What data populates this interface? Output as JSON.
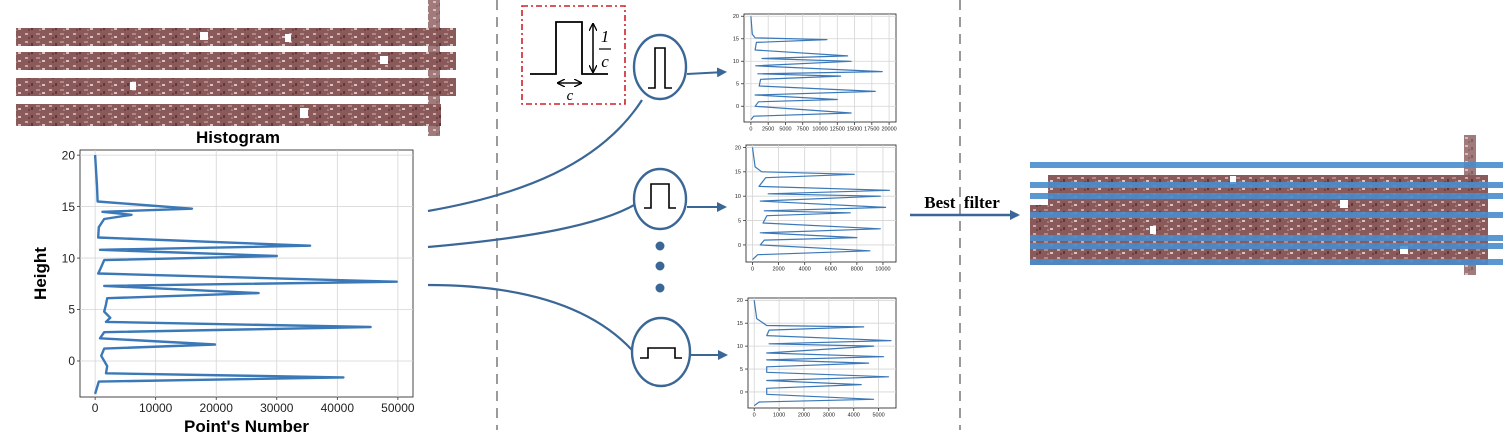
{
  "histogram_title": "Histogram",
  "best_filter_label": "Best  filter",
  "kernel_box": {
    "height_numerator": "1",
    "height_denominator": "c",
    "width_label": "c"
  },
  "colors": {
    "accent": "#3a78b8",
    "facade": "#7a4e4e",
    "guide": "#9a9a9a",
    "frame_red": "#d0202a"
  },
  "chart_data": [
    {
      "type": "line",
      "title": "Histogram",
      "xlabel": "Point's Number",
      "ylabel": "Height",
      "xlim": [
        -2500,
        52500
      ],
      "ylim": [
        -3.5,
        20.5
      ],
      "xticks": [
        0,
        10000,
        20000,
        30000,
        40000,
        50000
      ],
      "yticks": [
        0,
        5,
        10,
        15,
        20
      ],
      "grid": true,
      "series": [
        {
          "points": [
            [
              0,
              20
            ],
            [
              300,
              17
            ],
            [
              400,
              15.5
            ],
            [
              16000,
              14.8
            ],
            [
              1200,
              14.5
            ],
            [
              6000,
              14.2
            ],
            [
              1500,
              13.8
            ],
            [
              600,
              13
            ],
            [
              500,
              12
            ],
            [
              35500,
              11.2
            ],
            [
              800,
              10.8
            ],
            [
              30000,
              10.2
            ],
            [
              1500,
              9.8
            ],
            [
              900,
              9
            ],
            [
              500,
              8.5
            ],
            [
              49800,
              7.7
            ],
            [
              1500,
              7.3
            ],
            [
              27000,
              6.6
            ],
            [
              2000,
              6.1
            ],
            [
              1800,
              5.5
            ],
            [
              1500,
              4.8
            ],
            [
              2500,
              4.2
            ],
            [
              1800,
              3.8
            ],
            [
              45500,
              3.3
            ],
            [
              1500,
              2.8
            ],
            [
              800,
              2.2
            ],
            [
              19800,
              1.6
            ],
            [
              1500,
              1.2
            ],
            [
              1000,
              0.5
            ],
            [
              2000,
              -0.5
            ],
            [
              1800,
              -1.2
            ],
            [
              41000,
              -1.6
            ],
            [
              600,
              -2
            ],
            [
              0,
              -3.2
            ]
          ]
        }
      ]
    },
    {
      "type": "line",
      "xlim": [
        -1000,
        21000
      ],
      "ylim": [
        -3.5,
        20.5
      ],
      "xticks": [
        0,
        2500,
        5000,
        7500,
        10000,
        12500,
        15000,
        17500,
        20000
      ],
      "yticks": [
        0,
        5,
        10,
        15,
        20
      ],
      "grid": true,
      "series": [
        {
          "points": [
            [
              0,
              20
            ],
            [
              200,
              16
            ],
            [
              600,
              15.2
            ],
            [
              11000,
              14.8
            ],
            [
              800,
              14.2
            ],
            [
              600,
              12.5
            ],
            [
              14000,
              11.2
            ],
            [
              1600,
              10.6
            ],
            [
              14500,
              10
            ],
            [
              700,
              9
            ],
            [
              19000,
              7.7
            ],
            [
              1000,
              7.2
            ],
            [
              13000,
              6.7
            ],
            [
              1400,
              6
            ],
            [
              1200,
              4.5
            ],
            [
              18000,
              3.3
            ],
            [
              600,
              2.5
            ],
            [
              12500,
              1.5
            ],
            [
              1100,
              1
            ],
            [
              600,
              0
            ],
            [
              14500,
              -1.5
            ],
            [
              400,
              -2.2
            ],
            [
              0,
              -3
            ]
          ]
        }
      ]
    },
    {
      "type": "line",
      "xlim": [
        -500,
        11000
      ],
      "ylim": [
        -3.5,
        20.5
      ],
      "xticks": [
        0,
        2000,
        4000,
        6000,
        8000,
        10000
      ],
      "yticks": [
        0,
        5,
        10,
        15,
        20
      ],
      "grid": true,
      "series": [
        {
          "points": [
            [
              0,
              20
            ],
            [
              200,
              16
            ],
            [
              700,
              15
            ],
            [
              7800,
              14.5
            ],
            [
              1000,
              13.8
            ],
            [
              500,
              12
            ],
            [
              10500,
              11.2
            ],
            [
              1200,
              10.5
            ],
            [
              9800,
              10
            ],
            [
              600,
              9
            ],
            [
              10200,
              7.7
            ],
            [
              900,
              7
            ],
            [
              7500,
              6.6
            ],
            [
              1100,
              6
            ],
            [
              800,
              4.5
            ],
            [
              9800,
              3.3
            ],
            [
              600,
              2.5
            ],
            [
              8000,
              1.5
            ],
            [
              900,
              1
            ],
            [
              600,
              0
            ],
            [
              9000,
              -1.2
            ],
            [
              400,
              -2
            ],
            [
              0,
              -3
            ]
          ]
        }
      ]
    },
    {
      "type": "line",
      "xlim": [
        -250,
        5700
      ],
      "ylim": [
        -3.5,
        20.5
      ],
      "xticks": [
        0,
        1000,
        2000,
        3000,
        4000,
        5000
      ],
      "yticks": [
        0,
        5,
        10,
        15,
        20
      ],
      "grid": true,
      "series": [
        {
          "points": [
            [
              0,
              20
            ],
            [
              100,
              16
            ],
            [
              500,
              14.5
            ],
            [
              4400,
              14.2
            ],
            [
              600,
              13.5
            ],
            [
              500,
              12.3
            ],
            [
              5500,
              11.2
            ],
            [
              600,
              10.5
            ],
            [
              4800,
              10
            ],
            [
              500,
              8.5
            ],
            [
              5200,
              7.7
            ],
            [
              500,
              7
            ],
            [
              4600,
              6.3
            ],
            [
              500,
              5.5
            ],
            [
              500,
              4.3
            ],
            [
              5400,
              3.3
            ],
            [
              500,
              2.5
            ],
            [
              4300,
              1.6
            ],
            [
              500,
              0.8
            ],
            [
              500,
              -0.5
            ],
            [
              4800,
              -1.6
            ],
            [
              200,
              -2.2
            ],
            [
              0,
              -3
            ]
          ]
        }
      ]
    }
  ]
}
